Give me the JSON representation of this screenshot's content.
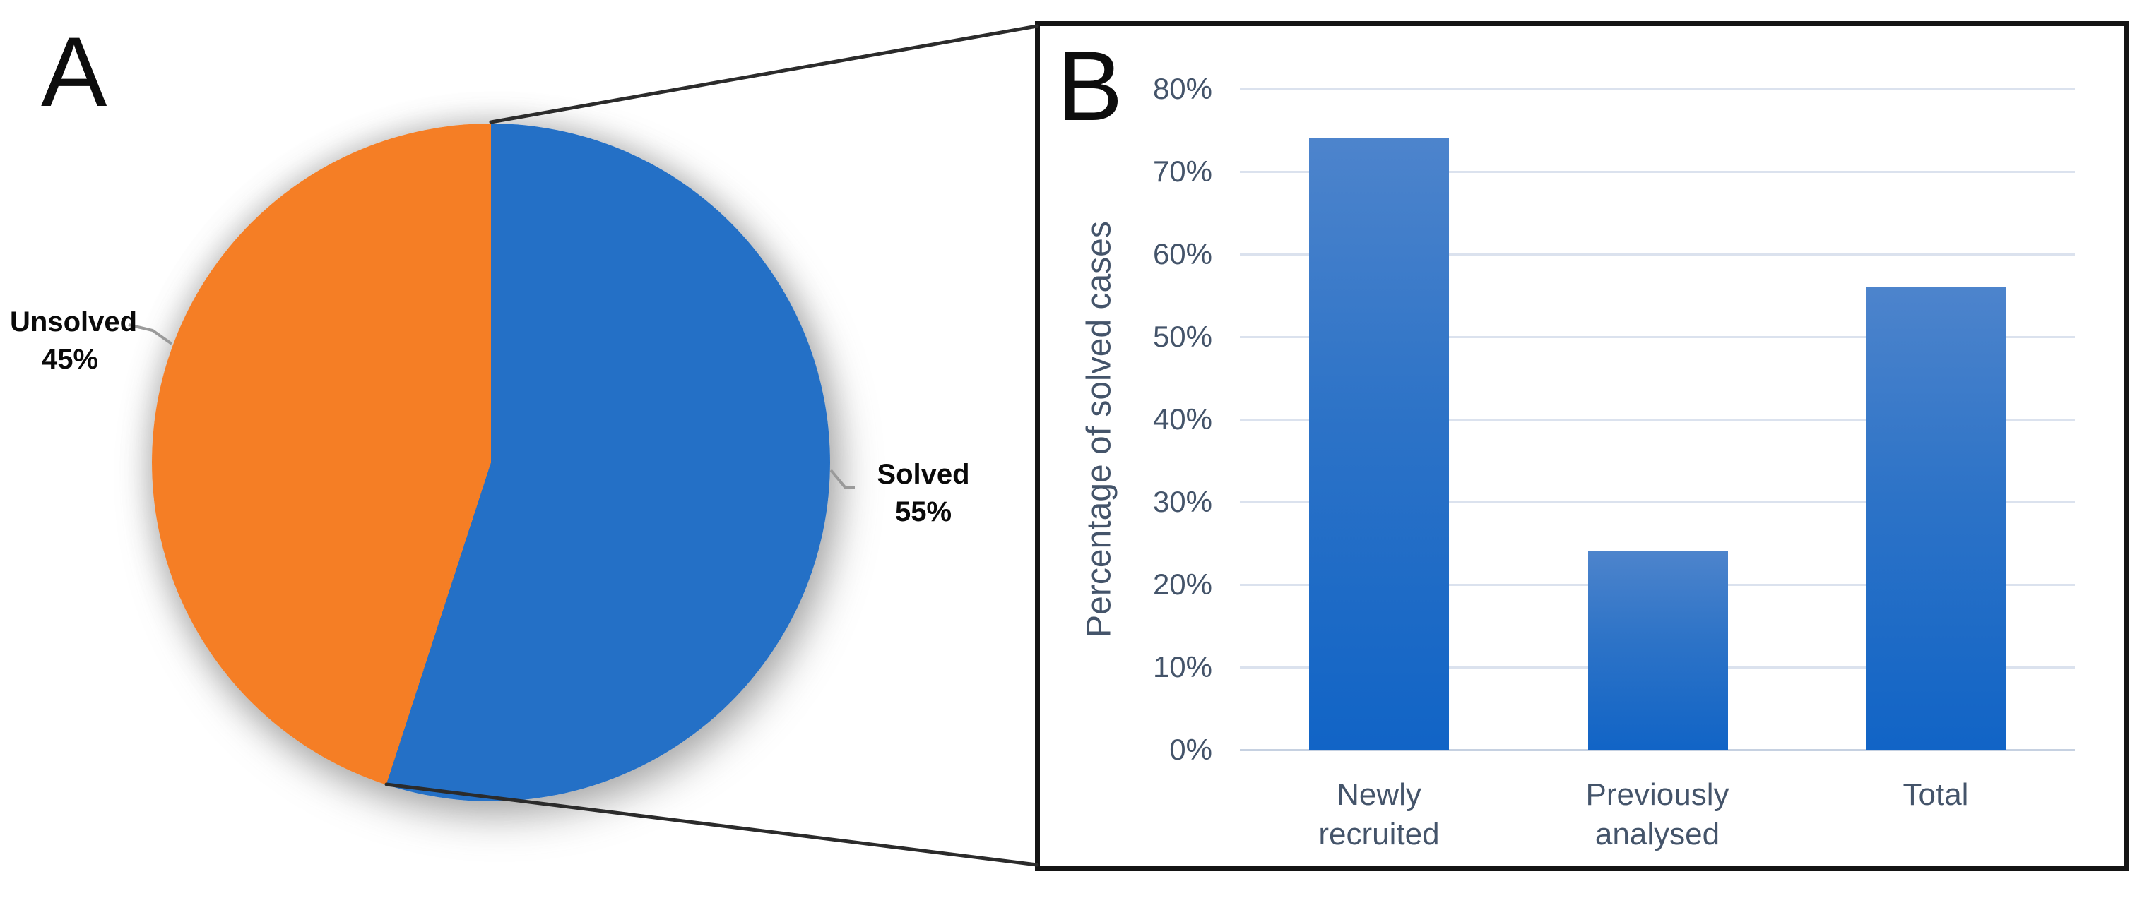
{
  "figure": {
    "type": "two-panel scientific figure",
    "background": "#ffffff"
  },
  "panel_a": {
    "label": "A",
    "chart_type": "pie",
    "slices": [
      {
        "label": "Solved",
        "pct": "55%",
        "color": "#2470c6"
      },
      {
        "label": "Unsolved",
        "pct": "45%",
        "color": "#f57e25"
      }
    ],
    "leader_line_color": "#9a9a9a",
    "connector_line_color": "#2b2b2b"
  },
  "panel_b": {
    "label": "B",
    "chart_type": "bar",
    "y_axis_title": "Percentage of solved cases",
    "ticks": [
      "80%",
      "70%",
      "60%",
      "50%",
      "40%",
      "30%",
      "20%",
      "10%",
      "0%"
    ],
    "categories": [
      {
        "line1": "Newly",
        "line2": "recruited"
      },
      {
        "line1": "Previously",
        "line2": "analysed"
      },
      {
        "line1": "Total",
        "line2": ""
      }
    ],
    "border_color": "#141414",
    "gridline_color": "#dbe2ee",
    "label_color": "#44546a",
    "bar_gradient_top": "#4d84cc",
    "bar_gradient_bottom": "#1164c6"
  },
  "chart_data": [
    {
      "type": "pie",
      "title": "",
      "slices": [
        {
          "label": "Solved",
          "value": 55
        },
        {
          "label": "Unsolved",
          "value": 45
        }
      ],
      "colors": {
        "Solved": "#2470c6",
        "Unsolved": "#f57e25"
      },
      "start_angle": "12-o-clock",
      "direction": "clockwise",
      "labels_outside": true
    },
    {
      "type": "bar",
      "categories": [
        "Newly recruited",
        "Previously analysed",
        "Total"
      ],
      "values": [
        74,
        24,
        56
      ],
      "title": "",
      "xlabel": "",
      "ylabel": "Percentage of solved cases",
      "ylim": [
        0,
        80
      ],
      "ytick_step": 10,
      "grid": true,
      "legend": false,
      "bar_color": "#1f6ec7"
    }
  ]
}
